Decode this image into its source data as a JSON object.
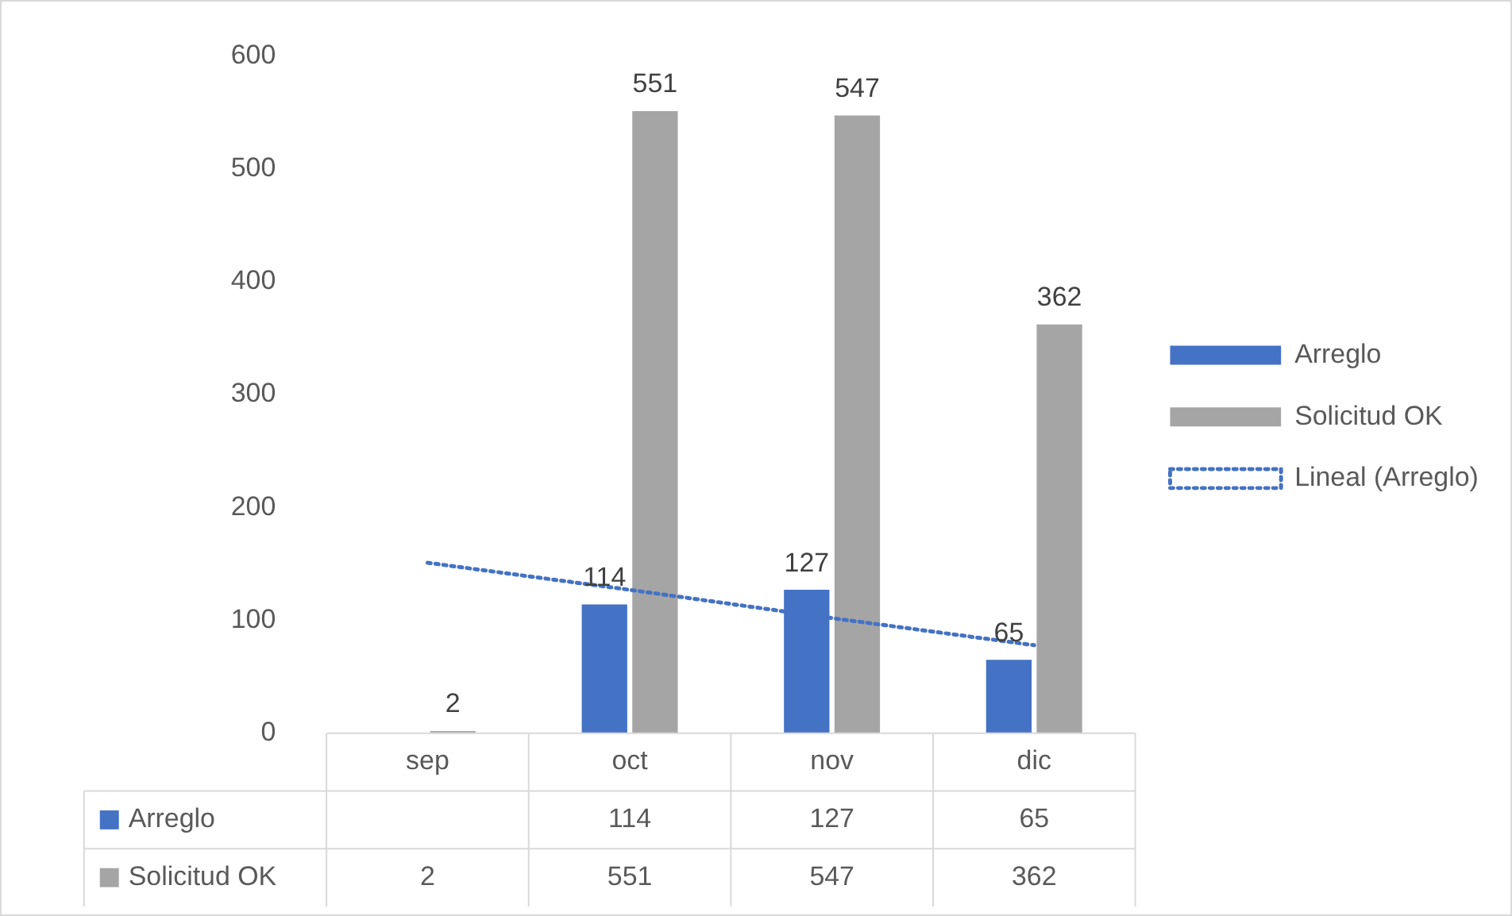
{
  "chart_data": {
    "type": "bar",
    "categories": [
      "sep",
      "oct",
      "nov",
      "dic"
    ],
    "series": [
      {
        "name": "Arreglo",
        "color": "#4472c4",
        "values": [
          null,
          114,
          127,
          65
        ],
        "value_labels": [
          null,
          "114",
          "127",
          "65"
        ]
      },
      {
        "name": "Solicitud OK",
        "color": "#a5a5a5",
        "values": [
          2,
          551,
          547,
          362
        ],
        "value_labels": [
          "2",
          "551",
          "547",
          "362"
        ]
      },
      {
        "name": "Lineal (Arreglo)",
        "type": "line",
        "color": "#4472c4",
        "line_style": "dotted",
        "marker": "none",
        "values": [
          151,
          127,
          102,
          78
        ]
      }
    ],
    "ylim": [
      0,
      600
    ],
    "yticks": [
      0,
      100,
      200,
      300,
      400,
      500,
      600
    ],
    "grid": false,
    "legend": "right"
  }
}
